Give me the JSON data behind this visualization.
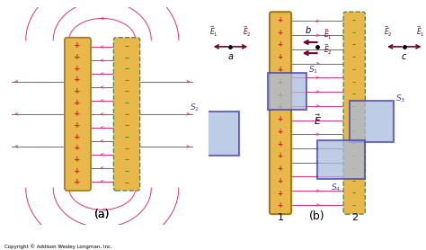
{
  "bg_color": "#ffffff",
  "plate_color": "#E8B84B",
  "plate_border_solid": "#A07820",
  "plate_border_dash": "#558855",
  "field_line_color": "#DD3377",
  "plus_color": "#CC2222",
  "minus_color": "#228822",
  "box_color": "#4444AA",
  "box_face": "#AABBDD",
  "arrow_color": "#770033",
  "copyright": "Copyright © Addison Wesley Longman, Inc.",
  "title_a": "(a)",
  "title_b": "(b)"
}
